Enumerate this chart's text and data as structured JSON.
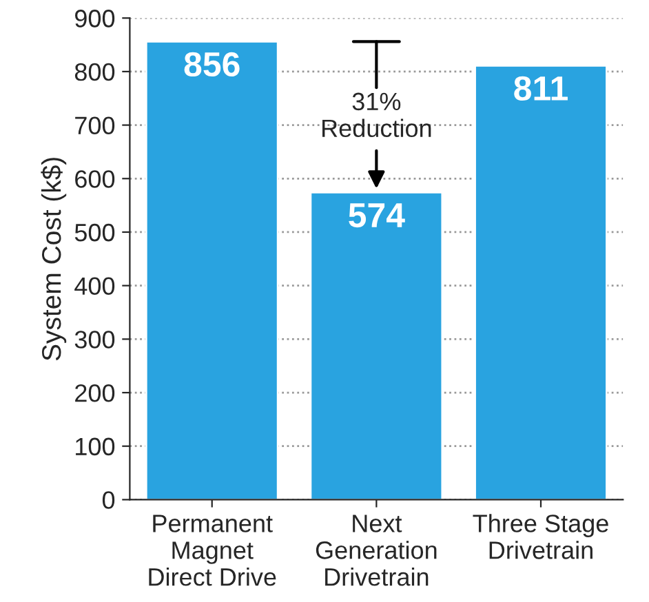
{
  "chart_data": {
    "type": "bar",
    "ylabel": "System Cost (k$)",
    "categories": [
      "Permanent\nMagnet\nDirect Drive",
      "Next\nGeneration\nDrivetrain",
      "Three Stage\nDrivetrain"
    ],
    "values": [
      856,
      574,
      811
    ],
    "color": "#29a3e0",
    "ylim": [
      0,
      900
    ],
    "yticks": [
      0,
      100,
      200,
      300,
      400,
      500,
      600,
      700,
      800,
      900
    ],
    "grid": "y",
    "data_labels": true,
    "annotations": [
      {
        "text": "31%\nReduction",
        "x": "Next\nGeneration\nDrivetrain",
        "y": 574
      }
    ]
  }
}
